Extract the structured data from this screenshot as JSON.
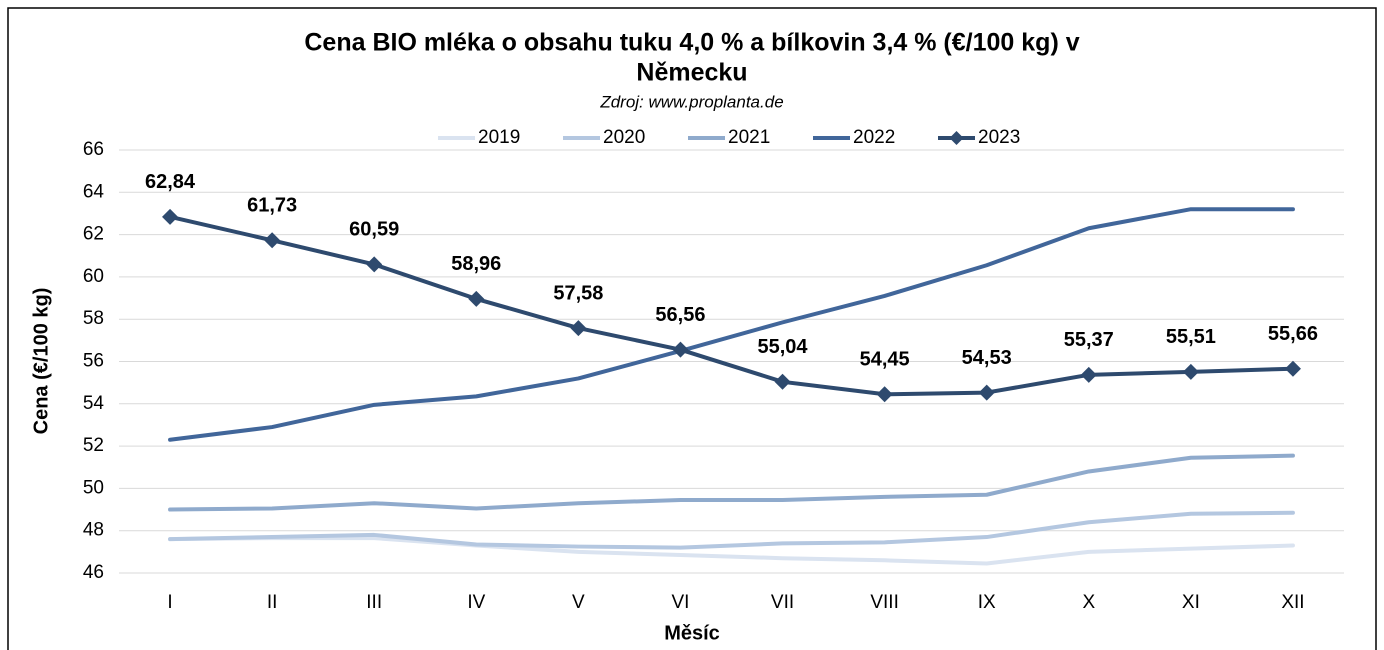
{
  "chart_data": {
    "type": "line",
    "title": [
      "Cena BIO mléka o obsahu tuku 4,0 % a bílkovin 3,4 % (€/100 kg) v",
      "Německu"
    ],
    "subtitle": "Zdroj: www.proplanta.de",
    "x_label": "Měsíc",
    "y_label": "Cena (€/100 kg)",
    "categories": [
      "I",
      "II",
      "III",
      "IV",
      "V",
      "VI",
      "VII",
      "VIII",
      "IX",
      "X",
      "XI",
      "XII"
    ],
    "series": [
      {
        "name": "2019",
        "color": "#dae3f0",
        "values": [
          47.6,
          47.65,
          47.65,
          47.3,
          47.0,
          46.85,
          46.7,
          46.6,
          46.45,
          47.0,
          47.15,
          47.3
        ]
      },
      {
        "name": "2020",
        "color": "#b4c7e0",
        "values": [
          47.6,
          47.7,
          47.8,
          47.35,
          47.25,
          47.2,
          47.4,
          47.45,
          47.7,
          48.4,
          48.8,
          48.85
        ]
      },
      {
        "name": "2021",
        "color": "#8faacc",
        "values": [
          49.0,
          49.05,
          49.3,
          49.05,
          49.3,
          49.45,
          49.45,
          49.6,
          49.7,
          50.8,
          51.45,
          51.55
        ]
      },
      {
        "name": "2022",
        "color": "#41669a",
        "values": [
          52.3,
          52.9,
          53.95,
          54.35,
          55.2,
          56.5,
          57.85,
          59.1,
          60.55,
          62.3,
          63.2,
          63.2
        ]
      },
      {
        "name": "2023",
        "color": "#2e4a6e",
        "marker": "diamond",
        "values": [
          62.84,
          61.73,
          60.59,
          58.96,
          57.58,
          56.56,
          55.04,
          54.45,
          54.53,
          55.37,
          55.51,
          55.66
        ],
        "value_labels": [
          "62,84",
          "61,73",
          "60,59",
          "58,96",
          "57,58",
          "56,56",
          "55,04",
          "54,45",
          "54,53",
          "55,37",
          "55,51",
          "55,66"
        ]
      }
    ],
    "ylim": [
      46,
      66
    ],
    "yticks": [
      46,
      48,
      50,
      52,
      54,
      56,
      58,
      60,
      62,
      64,
      66
    ],
    "grid": true
  }
}
